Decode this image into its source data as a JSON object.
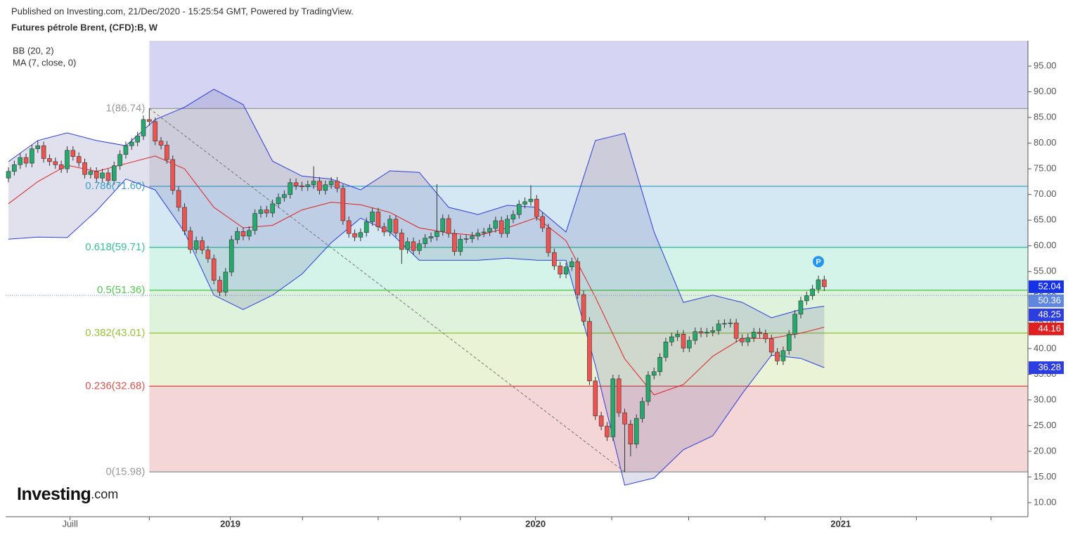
{
  "header": {
    "published": "Published on Investing.com, 21/Dec/2020 - 15:25:54 GMT, Powered by TradingView."
  },
  "brand": {
    "name": "Investing",
    "suffix": ".com"
  },
  "chart_data": {
    "type": "candlestick",
    "title": "Futures pétrole Brent, (CFD):B, W",
    "up_color": "#26a96c",
    "down_color": "#ef5350",
    "xlim": [
      -0.48,
      173.7
    ],
    "ylim": [
      7.26,
      99.93
    ],
    "xticks": [
      {
        "value": 10.5,
        "label": "Juill"
      },
      {
        "value": 37.8,
        "label": "2019"
      },
      {
        "value": 89.8,
        "label": "2020"
      },
      {
        "value": 141.8,
        "label": "2021"
      }
    ],
    "xticks_minor": [
      24,
      50.1,
      63,
      77,
      102.8,
      115.9,
      128.9,
      154.7,
      167.4
    ],
    "yticks": [
      {
        "value": 10,
        "label": "10.00"
      },
      {
        "value": 15,
        "label": "15.00"
      },
      {
        "value": 20,
        "label": "20.00"
      },
      {
        "value": 25,
        "label": "25.00"
      },
      {
        "value": 30,
        "label": "30.00"
      },
      {
        "value": 35,
        "label": "35.00"
      },
      {
        "value": 40,
        "label": "40.00"
      },
      {
        "value": 45,
        "label": "45.00"
      },
      {
        "value": 50,
        "label": "50.00"
      },
      {
        "value": 55,
        "label": "55.00"
      },
      {
        "value": 60,
        "label": "60.00"
      },
      {
        "value": 65,
        "label": "65.00"
      },
      {
        "value": 70,
        "label": "70.00"
      },
      {
        "value": 75,
        "label": "75.00"
      },
      {
        "value": 80,
        "label": "80.00"
      },
      {
        "value": 85,
        "label": "85.00"
      },
      {
        "value": 90,
        "label": "90.00"
      },
      {
        "value": 95,
        "label": "95.00"
      }
    ],
    "open": [
      73.2,
      74.5,
      75.8,
      77.2,
      76.1,
      78.9,
      79.5,
      77.0,
      76.4,
      75.8,
      75.0,
      78.6,
      77.4,
      76.2,
      73.9,
      74.5,
      73.2,
      74.2,
      72.7,
      75.6,
      77.8,
      79.5,
      80.2,
      81.4,
      84.6,
      84.2,
      80.4,
      79.6,
      76.8,
      70.8,
      67.5,
      62.9,
      59.3,
      61.0,
      59.2,
      57.5,
      53.3,
      51.0,
      54.9,
      61.2,
      62.8,
      61.9,
      63.0,
      66.3,
      67.0,
      66.4,
      68.2,
      69.4,
      70.0,
      72.3,
      71.7,
      71.5,
      71.9,
      72.6,
      70.8,
      71.9,
      72.6,
      71.2,
      64.9,
      62.4,
      61.7,
      62.6,
      64.7,
      66.6,
      63.7,
      62.7,
      65.2,
      62.5,
      59.3,
      60.8,
      59.1,
      60.4,
      61.5,
      61.8,
      62.8,
      65.3,
      62.4,
      58.9,
      61.3,
      61.4,
      61.9,
      62.5,
      62.7,
      63.4,
      64.9,
      62.4,
      65.2,
      66.1,
      68.1,
      68.6,
      69.1,
      65.7,
      63.5,
      58.7,
      56.1,
      54.5,
      55.9,
      56.9,
      50.5,
      45.3,
      33.7,
      26.9,
      24.9,
      22.8,
      34.1,
      27.5,
      25.3,
      21.4,
      26.4,
      29.7,
      34.8,
      35.5,
      38.3,
      41.3,
      42.3,
      42.8,
      40.1,
      41.6,
      43.3,
      43.0,
      43.2,
      43.5,
      44.8,
      44.9,
      45.0,
      42.0,
      41.3,
      42.1,
      43.2,
      42.9,
      41.9,
      39.3,
      37.6,
      39.6,
      42.8,
      46.7,
      49.3,
      50.3,
      51.6,
      53.4
    ],
    "high": [
      75.3,
      76.6,
      78.0,
      78.0,
      79.7,
      80.5,
      80.3,
      77.8,
      77.2,
      76.6,
      79.4,
      79.4,
      78.2,
      77.0,
      75.3,
      75.3,
      75.0,
      75.0,
      76.4,
      78.6,
      80.3,
      81.0,
      82.2,
      85.4,
      86.74,
      85.0,
      81.2,
      80.4,
      77.6,
      71.6,
      68.3,
      63.7,
      61.8,
      61.8,
      60.0,
      58.3,
      54.1,
      55.7,
      62.0,
      63.6,
      63.6,
      63.8,
      67.1,
      67.8,
      67.8,
      69.0,
      70.2,
      70.8,
      73.1,
      73.1,
      72.5,
      72.7,
      75.5,
      73.4,
      72.7,
      73.4,
      73.4,
      72.0,
      65.7,
      63.2,
      63.4,
      65.5,
      67.4,
      67.4,
      64.5,
      66.0,
      66.0,
      63.3,
      61.6,
      61.6,
      61.2,
      62.3,
      62.6,
      72.0,
      66.1,
      66.1,
      63.2,
      62.1,
      62.2,
      62.7,
      63.3,
      63.5,
      64.2,
      65.7,
      65.7,
      66.0,
      66.9,
      68.9,
      69.4,
      71.8,
      69.9,
      66.5,
      64.3,
      59.5,
      56.9,
      56.7,
      57.7,
      57.7,
      51.3,
      46.1,
      34.5,
      27.7,
      25.7,
      34.9,
      34.9,
      28.3,
      26.1,
      27.2,
      30.5,
      35.6,
      36.3,
      39.1,
      42.1,
      43.1,
      43.6,
      43.6,
      42.4,
      44.1,
      44.1,
      44.0,
      44.3,
      45.6,
      45.7,
      45.8,
      45.8,
      42.8,
      42.9,
      44.0,
      44.0,
      43.7,
      42.7,
      40.1,
      40.4,
      43.6,
      47.5,
      50.1,
      51.1,
      52.4,
      54.2,
      54.2
    ],
    "low": [
      72.4,
      73.7,
      75.0,
      75.3,
      75.3,
      78.1,
      76.2,
      75.6,
      75.0,
      74.2,
      74.2,
      76.6,
      75.4,
      73.1,
      73.1,
      72.4,
      72.4,
      71.9,
      71.9,
      74.8,
      77.0,
      78.7,
      79.4,
      80.6,
      83.4,
      79.6,
      78.8,
      76.0,
      70.0,
      66.7,
      62.1,
      58.5,
      58.5,
      58.4,
      56.7,
      52.5,
      50.2,
      50.2,
      54.1,
      60.4,
      61.1,
      61.1,
      62.2,
      65.5,
      65.6,
      65.6,
      67.4,
      68.6,
      69.2,
      70.9,
      70.7,
      70.7,
      71.1,
      70.0,
      70.0,
      71.1,
      70.4,
      64.1,
      61.6,
      60.9,
      60.9,
      61.8,
      63.9,
      62.9,
      61.9,
      61.9,
      61.7,
      56.5,
      58.5,
      58.3,
      58.3,
      59.6,
      60.7,
      61.0,
      62.0,
      61.6,
      58.1,
      58.1,
      60.5,
      60.6,
      61.1,
      61.7,
      61.9,
      62.6,
      61.6,
      61.6,
      64.4,
      65.3,
      67.3,
      67.8,
      64.9,
      62.7,
      57.9,
      55.3,
      53.7,
      53.7,
      55.1,
      49.7,
      44.5,
      32.9,
      26.1,
      24.1,
      22.0,
      22.0,
      26.7,
      15.98,
      19.0,
      20.6,
      25.6,
      28.9,
      34.0,
      34.7,
      37.5,
      40.5,
      41.5,
      39.3,
      39.3,
      40.8,
      42.2,
      42.2,
      42.4,
      42.7,
      44.0,
      44.1,
      41.2,
      40.5,
      40.5,
      41.3,
      42.1,
      41.1,
      38.5,
      36.8,
      36.8,
      38.8,
      42.0,
      45.9,
      48.5,
      49.5,
      50.8,
      51.2
    ],
    "close": [
      74.5,
      75.8,
      77.2,
      76.1,
      78.9,
      79.5,
      77.0,
      76.4,
      75.8,
      75.0,
      78.6,
      77.4,
      76.2,
      73.9,
      74.5,
      73.2,
      74.2,
      72.7,
      75.6,
      77.8,
      79.5,
      80.2,
      81.4,
      84.6,
      84.2,
      80.4,
      79.6,
      76.8,
      70.8,
      67.5,
      62.9,
      59.3,
      61.0,
      59.2,
      57.5,
      53.3,
      51.0,
      54.9,
      61.2,
      62.8,
      61.9,
      63.0,
      66.3,
      67.0,
      66.4,
      68.2,
      69.4,
      70.0,
      72.3,
      71.7,
      71.5,
      71.9,
      72.6,
      70.8,
      71.9,
      72.6,
      71.2,
      64.9,
      62.4,
      61.7,
      62.6,
      64.7,
      66.6,
      63.7,
      62.7,
      65.2,
      62.5,
      59.3,
      60.8,
      59.1,
      60.4,
      61.5,
      61.8,
      62.8,
      65.3,
      62.4,
      58.9,
      61.3,
      61.4,
      61.9,
      62.5,
      62.7,
      63.4,
      64.9,
      62.4,
      65.2,
      66.1,
      68.1,
      68.6,
      69.1,
      65.7,
      63.5,
      58.7,
      56.1,
      54.5,
      55.9,
      56.9,
      50.5,
      45.3,
      33.7,
      26.9,
      24.9,
      22.8,
      34.1,
      27.5,
      25.3,
      21.4,
      26.4,
      29.7,
      34.8,
      35.5,
      38.3,
      41.3,
      42.3,
      42.8,
      40.1,
      41.6,
      43.3,
      43.0,
      43.2,
      43.5,
      44.8,
      44.9,
      45.0,
      42.0,
      41.3,
      42.1,
      43.2,
      42.9,
      41.9,
      39.3,
      37.6,
      39.6,
      42.8,
      46.7,
      49.3,
      50.3,
      51.6,
      53.4,
      52.04
    ],
    "last_tag_color": "#1532e8",
    "bollinger": {
      "label": "BB (20, 2)",
      "color": "#2d3ee0",
      "fill": "rgba(90,90,160,0.18)",
      "x": [
        0,
        5,
        10,
        15,
        20,
        25,
        30,
        35,
        40,
        45,
        50,
        55,
        60,
        65,
        70,
        75,
        80,
        85,
        90,
        95,
        100,
        105,
        110,
        115,
        120,
        125,
        130,
        135,
        139
      ],
      "upper": [
        76.4,
        80.5,
        82.0,
        80.5,
        79.5,
        84.6,
        87.0,
        90.5,
        87.5,
        76.5,
        73.6,
        73.0,
        70.9,
        74.6,
        74.3,
        67.5,
        66.1,
        67.9,
        67.5,
        62.7,
        80.5,
        81.9,
        62.7,
        49.0,
        50.4,
        49.0,
        46.0,
        47.6,
        48.25
      ],
      "lower": [
        61.3,
        61.7,
        61.6,
        66.8,
        73.0,
        70.9,
        62.7,
        50.4,
        47.6,
        50.4,
        54.5,
        60.6,
        65.4,
        62.7,
        57.2,
        57.2,
        57.2,
        57.6,
        57.2,
        57.2,
        36.7,
        13.4,
        14.8,
        20.3,
        23.0,
        31.2,
        38.7,
        38.1,
        36.28
      ]
    },
    "ma": {
      "label": "MA (7, close, 0)",
      "color": "#e02020",
      "x": [
        0,
        5,
        10,
        15,
        20,
        25,
        30,
        35,
        40,
        45,
        50,
        55,
        60,
        65,
        70,
        75,
        80,
        85,
        90,
        95,
        100,
        105,
        110,
        115,
        120,
        125,
        130,
        135,
        139
      ],
      "values": [
        68.2,
        72.5,
        75.7,
        74.5,
        76.0,
        77.5,
        75.0,
        67.5,
        63.5,
        64.0,
        67.0,
        68.5,
        68.0,
        66.5,
        63.5,
        62.5,
        62.0,
        63.5,
        65.5,
        61.0,
        50.0,
        38.0,
        31.0,
        33.0,
        38.5,
        42.0,
        42.0,
        43.0,
        44.16
      ]
    },
    "last_price_line": {
      "value": 50.36,
      "color": "#5f86e0"
    },
    "marker": {
      "label": "P",
      "x": 138,
      "color": "#2196f3"
    },
    "fib_from": [
      24,
      86.74
    ],
    "fib_to": [
      105,
      15.98
    ],
    "fib_top_fill": "#d5d5f3",
    "fib_levels": [
      {
        "value": 86.74,
        "label": "1(86.74)",
        "color": "#9a9a9a",
        "fill": "#e6e6e8"
      },
      {
        "value": 71.6,
        "label": "0.786(71.60)",
        "color": "#3f9fcb",
        "fill": "#d4e8f4"
      },
      {
        "value": 59.71,
        "label": "0.618(59.71)",
        "color": "#35c29a",
        "fill": "#d4f4ea"
      },
      {
        "value": 51.36,
        "label": "0.5(51.36)",
        "color": "#4fc94f",
        "fill": "#dff3dc"
      },
      {
        "value": 43.01,
        "label": "0.382(43.01)",
        "color": "#98c43a",
        "fill": "#ebf3d6"
      },
      {
        "value": 32.68,
        "label": "0.236(32.68)",
        "color": "#d9534f",
        "fill": "#f4d6d6"
      },
      {
        "value": 15.98,
        "label": "0(15.98)",
        "color": "#9a9a9a"
      }
    ]
  }
}
